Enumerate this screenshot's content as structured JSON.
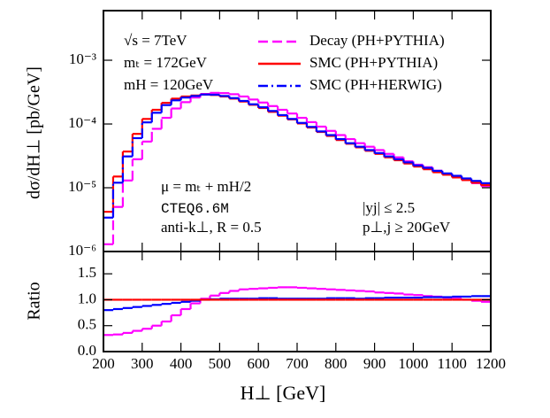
{
  "chart_data": [
    {
      "type": "histogram",
      "log_y": true,
      "legend": "top-right",
      "y_label": "dσ/dH⊥ [pb/GeV]",
      "annotations": [
        "√s = 7TeV",
        "mₜ = 172GeV",
        "mH = 120GeV",
        "μ = mₜ + mH/2",
        "CTEQ6.6M",
        "anti-k⊥, R = 0.5",
        "|yj| ≤ 2.5",
        "p⊥,j ≥ 20GeV"
      ],
      "xlim": [
        200,
        1200
      ],
      "ylim": [
        1e-06,
        0.006
      ],
      "yticks": [
        {
          "value": 1e-06,
          "label": "10⁻⁶"
        },
        {
          "value": 1e-05,
          "label": "10⁻⁵"
        },
        {
          "value": 0.0001,
          "label": "10⁻⁴"
        },
        {
          "value": 0.001,
          "label": "10⁻³"
        }
      ],
      "bins": [
        200,
        225,
        250,
        275,
        300,
        325,
        350,
        375,
        400,
        425,
        450,
        475,
        500,
        525,
        550,
        575,
        600,
        625,
        650,
        675,
        700,
        725,
        750,
        775,
        800,
        825,
        850,
        875,
        900,
        925,
        950,
        975,
        1000,
        1025,
        1050,
        1075,
        1100,
        1125,
        1150,
        1175,
        1200
      ],
      "series": [
        {
          "name": "Decay (PH+PYTHIA)",
          "color": "#ff00ff",
          "line_style": "dashed",
          "values": [
            1.3e-06,
            5e-06,
            1.3e-05,
            2.8e-05,
            5.3e-05,
            8.4e-05,
            0.000125,
            0.000175,
            0.00022,
            0.00026,
            0.000296,
            0.000308,
            0.000305,
            0.000293,
            0.00027,
            0.000242,
            0.000217,
            0.000191,
            0.000167,
            0.000146,
            0.000125,
            0.000107,
            9.1e-05,
            7.8e-05,
            6.7e-05,
            5.8e-05,
            5e-05,
            4.4e-05,
            3.9e-05,
            3.4e-05,
            3e-05,
            2.6e-05,
            2.3e-05,
            2.1e-05,
            1.85e-05,
            1.66e-05,
            1.48e-05,
            1.32e-05,
            1.18e-05,
            1.06e-05
          ]
        },
        {
          "name": "SMC (PH+PYTHIA)",
          "color": "#ff0000",
          "line_style": "solid",
          "values": [
            4.2e-06,
            1.5e-05,
            3.7e-05,
            7e-05,
            0.00012,
            0.000167,
            0.000215,
            0.00025,
            0.00027,
            0.00028,
            0.00029,
            0.000285,
            0.00027,
            0.00025,
            0.000225,
            0.0002,
            0.000178,
            0.000155,
            0.000135,
            0.000118,
            0.000102,
            8.8e-05,
            7.5e-05,
            6.5e-05,
            5.6e-05,
            4.9e-05,
            4.3e-05,
            3.8e-05,
            3.4e-05,
            3e-05,
            2.7e-05,
            2.4e-05,
            2.15e-05,
            1.95e-05,
            1.75e-05,
            1.6e-05,
            1.45e-05,
            1.32e-05,
            1.2e-05,
            1.1e-05
          ]
        },
        {
          "name": "SMC (PH+HERWIG)",
          "color": "#0000ff",
          "line_style": "dashdot",
          "values": [
            3.4e-06,
            1.2e-05,
            3.1e-05,
            6e-05,
            0.000106,
            0.00015,
            0.000198,
            0.000235,
            0.00026,
            0.000275,
            0.00029,
            0.000288,
            0.000275,
            0.000255,
            0.00023,
            0.000204,
            0.000183,
            0.00016,
            0.000138,
            0.00012,
            0.000104,
            9e-05,
            7.65e-05,
            6.7e-05,
            5.8e-05,
            5e-05,
            4.4e-05,
            3.9e-05,
            3.5e-05,
            3.1e-05,
            2.8e-05,
            2.5e-05,
            2.24e-05,
            2.05e-05,
            1.84e-05,
            1.68e-05,
            1.54e-05,
            1.4e-05,
            1.28e-05,
            1.18e-05
          ]
        }
      ]
    },
    {
      "type": "histogram",
      "log_y": false,
      "y_label": "Ratio",
      "x_label": "H⊥ [GeV]",
      "xlim": [
        200,
        1200
      ],
      "ylim": [
        0,
        1.93
      ],
      "xticks": [
        200,
        300,
        400,
        500,
        600,
        700,
        800,
        900,
        1000,
        1100,
        1200
      ],
      "yticks": [
        {
          "value": 0,
          "label": "0.0"
        },
        {
          "value": 0.5,
          "label": "0.5"
        },
        {
          "value": 1,
          "label": "1.0"
        },
        {
          "value": 1.5,
          "label": "1.5"
        }
      ],
      "bins": [
        200,
        225,
        250,
        275,
        300,
        325,
        350,
        375,
        400,
        425,
        450,
        475,
        500,
        525,
        550,
        575,
        600,
        625,
        650,
        675,
        700,
        725,
        750,
        775,
        800,
        825,
        850,
        875,
        900,
        925,
        950,
        975,
        1000,
        1025,
        1050,
        1075,
        1100,
        1125,
        1150,
        1175,
        1200
      ],
      "series": [
        {
          "color": "#ff00ff",
          "line_style": "dashed",
          "values": [
            0.32,
            0.33,
            0.36,
            0.4,
            0.44,
            0.5,
            0.58,
            0.7,
            0.82,
            0.93,
            1.02,
            1.08,
            1.13,
            1.17,
            1.2,
            1.21,
            1.22,
            1.23,
            1.24,
            1.24,
            1.23,
            1.22,
            1.21,
            1.2,
            1.19,
            1.18,
            1.17,
            1.16,
            1.14,
            1.13,
            1.12,
            1.1,
            1.09,
            1.07,
            1.06,
            1.04,
            1.02,
            1.0,
            0.98,
            0.96
          ]
        },
        {
          "color": "#0000ff",
          "line_style": "dashdot",
          "values": [
            0.8,
            0.82,
            0.84,
            0.86,
            0.88,
            0.9,
            0.92,
            0.94,
            0.96,
            0.98,
            1.0,
            1.01,
            1.02,
            1.02,
            1.02,
            1.02,
            1.03,
            1.03,
            1.02,
            1.02,
            1.02,
            1.02,
            1.02,
            1.03,
            1.03,
            1.03,
            1.02,
            1.03,
            1.03,
            1.04,
            1.04,
            1.04,
            1.04,
            1.05,
            1.05,
            1.05,
            1.06,
            1.06,
            1.07,
            1.07
          ]
        },
        {
          "color": "#ff0000",
          "line_style": "solid",
          "values": [
            1,
            1,
            1,
            1,
            1,
            1,
            1,
            1,
            1,
            1,
            1,
            1,
            1,
            1,
            1,
            1,
            1,
            1,
            1,
            1,
            1,
            1,
            1,
            1,
            1,
            1,
            1,
            1,
            1,
            1,
            1,
            1,
            1,
            1,
            1,
            1,
            1,
            1,
            1,
            1
          ]
        }
      ]
    }
  ]
}
